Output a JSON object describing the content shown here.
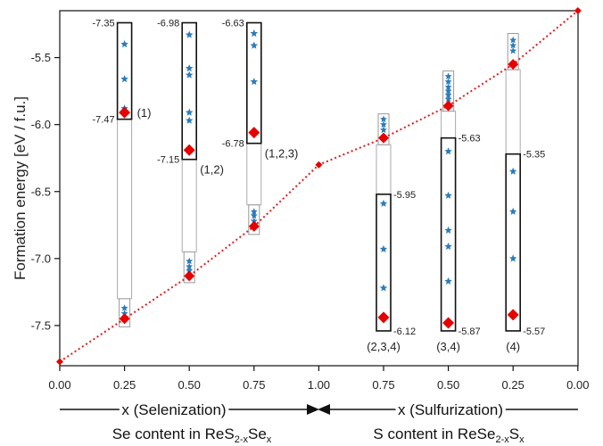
{
  "chart_data": {
    "type": "scatter",
    "ylabel": "Formation energy [eV / f.u.]",
    "ylim": [
      -7.8,
      -5.15
    ],
    "yticks": [
      "-5.5",
      "-6.0",
      "-6.5",
      "-7.0",
      "-7.5"
    ],
    "xticks": [
      "0.00",
      "0.25",
      "0.50",
      "0.75",
      "1.00",
      "0.75",
      "0.50",
      "0.25",
      "0.00"
    ],
    "x_label_left": "x (Selenization)",
    "x_label_right": "x (Sulfurization)",
    "content_left": {
      "prefix": "Se content in ReS",
      "sub1": "2-x",
      "mid": "Se",
      "sub2": "x"
    },
    "content_right": {
      "prefix": "S content in ReSe",
      "sub1": "2-x",
      "mid": "S",
      "sub2": "x"
    },
    "hull_points": [
      {
        "x": 0,
        "y": -7.77
      },
      {
        "x": 1,
        "y": -7.45
      },
      {
        "x": 2,
        "y": -7.13
      },
      {
        "x": 3,
        "y": -6.76
      },
      {
        "x": 4,
        "y": -6.3
      },
      {
        "x": 5,
        "y": -6.1
      },
      {
        "x": 6,
        "y": -5.86
      },
      {
        "x": 7,
        "y": -5.55
      },
      {
        "x": 8,
        "y": -5.15
      }
    ],
    "clusters": [
      {
        "x": 1,
        "y_lo": -7.51,
        "y_hi": -7.3,
        "stars": [
          -7.37,
          -7.41,
          -7.44
        ]
      },
      {
        "x": 2,
        "y_lo": -7.18,
        "y_hi": -6.95,
        "stars": [
          -7.02,
          -7.06,
          -7.09
        ]
      },
      {
        "x": 3,
        "y_lo": -6.82,
        "y_hi": -6.6,
        "stars": [
          -6.65,
          -6.68,
          -6.72
        ]
      },
      {
        "x": 5,
        "y_lo": -6.15,
        "y_hi": -5.92,
        "stars": [
          -5.96,
          -6.0,
          -6.04
        ]
      },
      {
        "x": 6,
        "y_lo": -5.9,
        "y_hi": -5.6,
        "stars": [
          -5.64,
          -5.68,
          -5.72,
          -5.75,
          -5.78,
          -5.81
        ]
      },
      {
        "x": 7,
        "y_lo": -5.59,
        "y_hi": -5.32,
        "stars": [
          -5.37,
          -5.41,
          -5.45
        ]
      }
    ],
    "zoom_panels": [
      {
        "x": 1,
        "top": "-7.35",
        "bottom": "-7.47",
        "site": "(1)",
        "y_top": -5.24,
        "y_bot": -5.96,
        "stars": [
          -5.4,
          -5.66,
          -5.88
        ],
        "red": -5.91
      },
      {
        "x": 2,
        "top": "-6.98",
        "bottom": "-7.15",
        "site": "(1,2)",
        "y_top": -5.24,
        "y_bot": -6.26,
        "stars": [
          -5.33,
          -5.58,
          -5.63,
          -5.91,
          -5.97
        ],
        "red": -6.19
      },
      {
        "x": 3,
        "top": "-6.63",
        "bottom": "-6.78",
        "site": "(1,2,3)",
        "y_top": -5.24,
        "y_bot": -6.14,
        "stars": [
          -5.32,
          -5.41,
          -5.68
        ],
        "red": -6.06
      },
      {
        "x": 5,
        "top": "-5.95",
        "bottom": "-6.12",
        "site": "(2,3,4)",
        "y_top": -6.52,
        "y_bot": -7.54,
        "stars": [
          -6.59,
          -6.93,
          -7.22
        ],
        "red": -7.44
      },
      {
        "x": 6,
        "top": "-5.63",
        "bottom": "-5.87",
        "site": "(3,4)",
        "y_top": -6.1,
        "y_bot": -7.54,
        "stars": [
          -6.2,
          -6.53,
          -6.79,
          -6.91,
          -7.17
        ],
        "red": -7.48
      },
      {
        "x": 7,
        "top": "-5.35",
        "bottom": "-5.57",
        "site": "(4)",
        "y_top": -6.22,
        "y_bot": -7.54,
        "stars": [
          -6.35,
          -6.65,
          -7.0
        ],
        "red": -7.42
      }
    ],
    "colors": {
      "hull": "#e31a1c",
      "marker": "#e60000",
      "star": "#2b7bba",
      "frame": "#111111",
      "link": "#aaaaaa"
    }
  }
}
